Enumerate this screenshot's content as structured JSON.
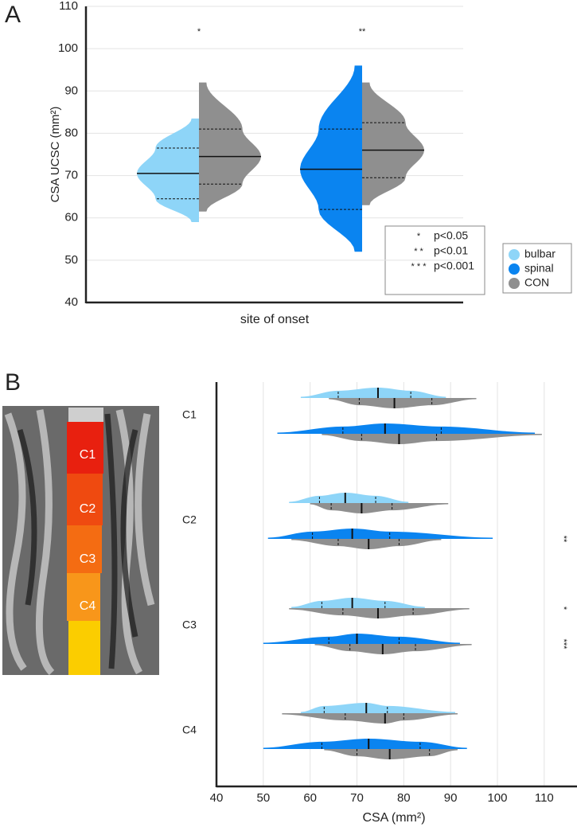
{
  "chart_data": [
    {
      "type": "violin",
      "panel": "A",
      "ylabel": "CSA UCSC (mm²)",
      "xlabel": "site of onset",
      "ylim": [
        40,
        110
      ],
      "yticks": [
        40,
        50,
        60,
        70,
        80,
        90,
        100,
        110
      ],
      "grid": true,
      "annotations": [
        "*",
        "**"
      ],
      "series": [
        {
          "name": "bulbar",
          "color": "#8ed5f8",
          "min": [
            59,
            null
          ],
          "q1": [
            64.5,
            null
          ],
          "median": [
            70.5,
            null
          ],
          "q3": [
            76.5,
            null
          ],
          "max": [
            83.5,
            null
          ]
        },
        {
          "name": "spinal",
          "color": "#0a84f0",
          "min": [
            null,
            52
          ],
          "q1": [
            null,
            62
          ],
          "median": [
            null,
            71.5
          ],
          "q3": [
            null,
            81
          ],
          "max": [
            null,
            96
          ]
        },
        {
          "name": "CON",
          "color": "#8f8f8f",
          "min": [
            61.5,
            63
          ],
          "q1": [
            68,
            69.5
          ],
          "median": [
            74.5,
            76
          ],
          "q3": [
            81,
            82.5
          ],
          "max": [
            92,
            92
          ]
        }
      ],
      "significance": [
        {
          "symbol": "*",
          "label": "p<0.05"
        },
        {
          "symbol": "* *",
          "label": "p<0.01"
        },
        {
          "symbol": "* * *",
          "label": "p<0.001"
        }
      ]
    },
    {
      "type": "split-violin",
      "panel": "B",
      "xlabel": "CSA (mm²)",
      "xlim": [
        40,
        117
      ],
      "xticks": [
        40,
        50,
        60,
        70,
        80,
        90,
        100,
        110
      ],
      "grid": true,
      "categories": [
        "C1",
        "C2",
        "C3",
        "C4"
      ],
      "image_labels": [
        "C1",
        "C2",
        "C3",
        "C4"
      ],
      "annotations": [
        null,
        null,
        null,
        "**",
        "*",
        "***",
        null,
        null
      ],
      "series": [
        {
          "min": [
            58,
            null,
            55.5,
            null,
            56,
            null,
            58,
            null
          ],
          "q1": [
            66,
            null,
            62,
            null,
            62.5,
            null,
            63,
            null
          ],
          "median": [
            74.5,
            null,
            67.5,
            null,
            69,
            null,
            72,
            null
          ],
          "q3": [
            81.5,
            null,
            74,
            null,
            76,
            null,
            76.5,
            null
          ],
          "max": [
            89,
            null,
            81,
            null,
            84.5,
            null,
            91,
            null
          ]
        },
        {
          "min": [
            null,
            53,
            null,
            51,
            null,
            50,
            null,
            50
          ],
          "q1": [
            null,
            67,
            null,
            60.5,
            null,
            64,
            null,
            62.5
          ],
          "median": [
            null,
            76,
            null,
            69,
            null,
            70,
            null,
            72.5
          ],
          "q3": [
            null,
            88,
            null,
            77,
            null,
            79,
            null,
            83.5
          ],
          "max": [
            null,
            108,
            null,
            99,
            null,
            92,
            null,
            93.5
          ]
        },
        {
          "min": [
            64,
            62.5,
            60,
            56,
            55.5,
            61,
            54,
            63
          ],
          "q1": [
            70.5,
            71,
            64.5,
            66,
            67,
            68.5,
            67.5,
            70
          ],
          "median": [
            78,
            79,
            71,
            72.5,
            74.5,
            75.5,
            76,
            77
          ],
          "q3": [
            86,
            87,
            77.5,
            79,
            82,
            82.5,
            80,
            85.5
          ],
          "max": [
            95.5,
            109.5,
            89.5,
            88,
            94,
            94.5,
            91.5,
            91.5
          ]
        }
      ]
    }
  ]
}
